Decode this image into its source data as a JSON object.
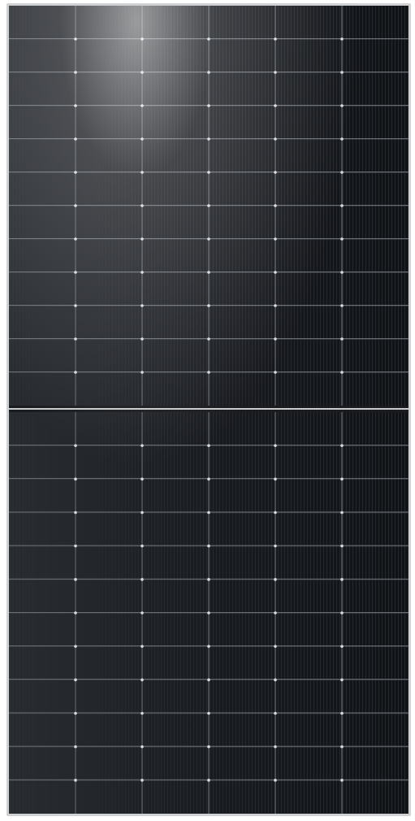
{
  "image": {
    "subject": "solar-panel",
    "colors": {
      "background": "#ffffff",
      "frame": "#cfd1d3",
      "cell": "#15171a",
      "busbar": "#d8dadc",
      "grid_line": "#3a3e44",
      "finger_line": "#24272c",
      "glare": "#ffffff"
    },
    "cell_columns": 6,
    "cell_rows_per_half": 12,
    "halves": 2
  }
}
